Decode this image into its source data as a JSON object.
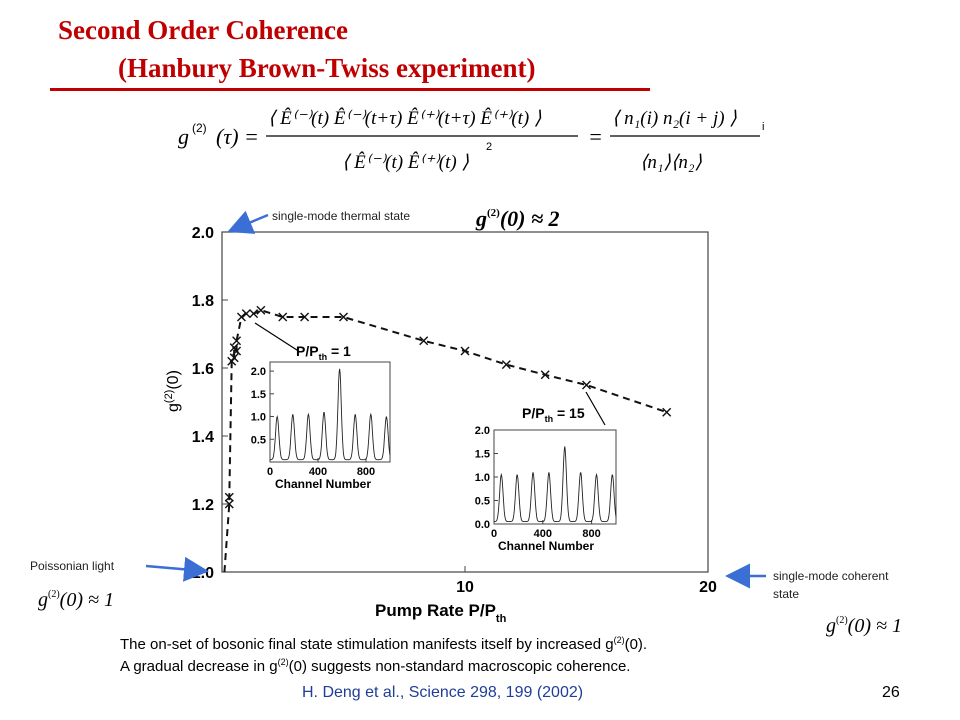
{
  "slide": {
    "title_line1": "Second Order Coherence",
    "title_line2": "(Hanbury Brown-Twiss experiment)",
    "reference": "H. Deng et al., Science 298, 199 (2002)",
    "page_number": "26",
    "caption_line1_pre": "The on-set of bosonic final state stimulation manifests itself by increased g",
    "caption_line1_sup": "(2)",
    "caption_line1_post": "(0).",
    "caption_line2_pre": "A gradual decrease in g",
    "caption_line2_sup": "(2)",
    "caption_line2_post": "(0) suggests non-standard macroscopic coherence."
  },
  "formula": {
    "lhs": "g",
    "lhs_sup": "(2)",
    "lhs_arg": "(τ) =",
    "numerator": "⟨ Ê⁽⁻⁾(t) Ê⁽⁻⁾(t+τ) Ê⁽⁺⁾(t+τ) Ê⁽⁺⁾(t) ⟩",
    "denominator": "⟨ Ê⁽⁻⁾(t) Ê⁽⁺⁾(t) ⟩",
    "denominator_power": "2",
    "equals": "=",
    "rhs_numerator": "⟨ n₁(i) n₂(i + j) ⟩",
    "rhs_subscript": "i",
    "rhs_denominator": "⟨n₁⟩⟨n₂⟩"
  },
  "annotations": {
    "thermal_label": "single-mode thermal state",
    "thermal_formula_g": "g",
    "thermal_formula_sup": "(2)",
    "thermal_formula_rest": "(0) ≈ 2",
    "poissonian_label": "Poissonian light",
    "coherent_label_line1": "single-mode coherent",
    "coherent_label_line2": "state",
    "coherent_formula_g": "g",
    "coherent_formula_sup": "(2)",
    "coherent_formula_rest": "(0) ≈ 1",
    "poissonian_formula_g": "g",
    "poissonian_formula_sup": "(2)",
    "poissonian_formula_rest": "(0) ≈ 1",
    "arrow_color": "#3b6fd6"
  },
  "chart_data": [
    {
      "type": "line",
      "xlabel": "Pump Rate P/P",
      "xlabel_sub": "th",
      "ylabel": "g",
      "ylabel_sup": "(2)",
      "ylabel_post": "(0)",
      "xlim": [
        0,
        20
      ],
      "ylim": [
        1.0,
        2.0
      ],
      "x_ticks": [
        10,
        20
      ],
      "y_ticks": [
        1.0,
        1.2,
        1.4,
        1.6,
        1.8,
        2.0
      ],
      "y_tick_labels": [
        "1.0",
        "1.2",
        "1.4",
        "1.6",
        "1.8",
        "2.0"
      ],
      "x_tick_labels": [
        "10",
        "20"
      ],
      "series": [
        {
          "x": [
            0.3,
            0.3,
            0.4,
            0.5,
            0.5,
            0.6,
            0.6,
            0.8,
            1.0,
            1.3,
            1.6,
            2.5,
            3.4,
            5.0,
            8.3,
            10.0,
            11.7,
            13.3,
            15.0,
            18.3
          ],
          "y": [
            1.2,
            1.22,
            1.62,
            1.63,
            1.66,
            1.65,
            1.68,
            1.75,
            1.76,
            1.76,
            1.77,
            1.75,
            1.75,
            1.75,
            1.68,
            1.65,
            1.61,
            1.58,
            1.55,
            1.47
          ]
        }
      ],
      "grid": false
    },
    {
      "type": "line",
      "title": "P/P",
      "title_sub": "th",
      "title_post": " = 1",
      "xlabel": "Channel Number",
      "x_ticks": [
        0,
        400,
        800
      ],
      "y_ticks": [
        0.5,
        1.0,
        1.5,
        2.0
      ],
      "y_tick_labels": [
        "0.5",
        "1.0",
        "1.5",
        "2.0"
      ],
      "x_tick_labels": [
        "0",
        "400",
        "800"
      ],
      "xlim": [
        0,
        1000
      ],
      "ylim": [
        0,
        2.2
      ],
      "peaks_x": [
        60,
        190,
        320,
        450,
        580,
        710,
        840,
        970
      ],
      "peaks_y": [
        0.95,
        1.0,
        1.0,
        1.05,
        2.0,
        1.0,
        1.0,
        0.95
      ]
    },
    {
      "type": "line",
      "title": "P/P",
      "title_sub": "th",
      "title_post": " = 15",
      "xlabel": "Channel Number",
      "x_ticks": [
        0,
        400,
        800
      ],
      "y_ticks": [
        0.0,
        0.5,
        1.0,
        1.5,
        2.0
      ],
      "y_tick_labels": [
        "0.0",
        "0.5",
        "1.0",
        "1.5",
        "2.0"
      ],
      "x_tick_labels": [
        "0",
        "400",
        "800"
      ],
      "xlim": [
        0,
        1000
      ],
      "ylim": [
        0,
        2.0
      ],
      "peaks_x": [
        60,
        190,
        320,
        450,
        580,
        710,
        840,
        970
      ],
      "peaks_y": [
        1.0,
        1.0,
        1.05,
        1.05,
        1.6,
        1.05,
        1.0,
        1.0
      ]
    }
  ]
}
